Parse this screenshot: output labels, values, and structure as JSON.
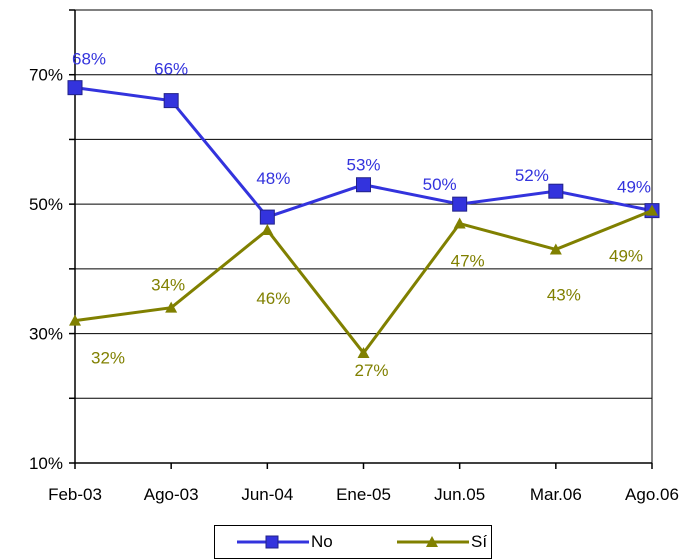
{
  "colors": {
    "no": "#3333dd",
    "si": "#808000",
    "grid": "#000000",
    "axis": "#000000"
  },
  "chart_data": {
    "type": "line",
    "categories": [
      "Feb-03",
      "Ago-03",
      "Jun-04",
      "Ene-05",
      "Jun.05",
      "Mar.06",
      "Ago.06"
    ],
    "yticks": [
      "10%",
      "30%",
      "50%",
      "70%"
    ],
    "ylim": [
      10,
      80
    ],
    "grid": true,
    "legend": "bottom",
    "series": [
      {
        "name": "No",
        "marker": "square",
        "values": [
          68,
          66,
          48,
          53,
          50,
          52,
          49
        ],
        "labels": [
          "68%",
          "66%",
          "48%",
          "53%",
          "50%",
          "52%",
          "49%"
        ]
      },
      {
        "name": "Sí",
        "marker": "triangle",
        "values": [
          32,
          34,
          46,
          27,
          47,
          43,
          49
        ],
        "labels": [
          "32%",
          "34%",
          "46%",
          "27%",
          "47%",
          "43%",
          "49%"
        ]
      }
    ]
  }
}
